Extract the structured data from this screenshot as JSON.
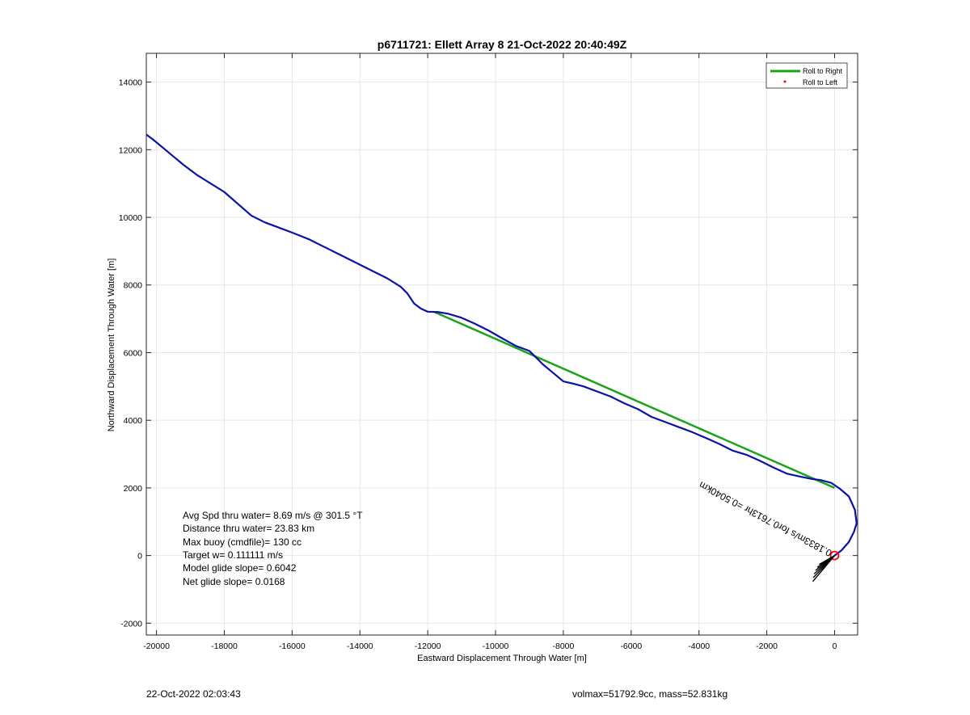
{
  "chart_data": {
    "type": "line",
    "title": "p6711721: Ellett Array 8 21-Oct-2022 20:40:49Z",
    "xlabel": "Eastward Displacement Through Water [m]",
    "ylabel": "Northward Displacement Through Water [m]",
    "xlim": [
      -20300,
      680
    ],
    "ylim": [
      -2350,
      14850
    ],
    "xticks": [
      -20000,
      -18000,
      -16000,
      -14000,
      -12000,
      -10000,
      -8000,
      -6000,
      -4000,
      -2000,
      0
    ],
    "yticks": [
      -2000,
      0,
      2000,
      4000,
      6000,
      8000,
      10000,
      12000,
      14000
    ],
    "grid": true,
    "legend_position": "top-right",
    "legend": [
      {
        "label": "Roll to Right",
        "color": "#1aa31a",
        "style": "line"
      },
      {
        "label": "Roll to Left",
        "color": "#ff0000",
        "style": "dot"
      }
    ],
    "series": [
      {
        "name": "track",
        "color": "#0a12a8",
        "x": [
          0,
          200,
          420,
          570,
          650,
          600,
          420,
          150,
          -100,
          -400,
          -700,
          -1000,
          -1400,
          -1800,
          -2200,
          -2600,
          -3000,
          -3400,
          -3800,
          -4200,
          -4600,
          -5000,
          -5400,
          -5800,
          -6200,
          -6600,
          -7000,
          -7400,
          -7700,
          -8000,
          -8300,
          -8600,
          -8800,
          -9000,
          -9400,
          -9800,
          -10200,
          -10600,
          -11000,
          -11400,
          -11700,
          -12000,
          -12200,
          -12400,
          -12600,
          -12800,
          -13200,
          -13600,
          -14000,
          -14500,
          -15000,
          -15500,
          -16000,
          -16400,
          -16800,
          -17200,
          -17600,
          -18000,
          -18400,
          -18800,
          -19200,
          -19500,
          -19800,
          -20100,
          -20300
        ],
        "y": [
          0,
          150,
          400,
          700,
          950,
          1350,
          1750,
          1980,
          2150,
          2230,
          2270,
          2330,
          2420,
          2600,
          2800,
          2980,
          3100,
          3300,
          3480,
          3650,
          3800,
          3950,
          4100,
          4330,
          4500,
          4700,
          4850,
          5000,
          5080,
          5150,
          5400,
          5650,
          5850,
          6050,
          6200,
          6420,
          6650,
          6850,
          7030,
          7150,
          7200,
          7210,
          7300,
          7450,
          7750,
          7950,
          8200,
          8400,
          8600,
          8850,
          9100,
          9350,
          9550,
          9700,
          9850,
          10050,
          10400,
          10750,
          11000,
          11250,
          11550,
          11800,
          12050,
          12300,
          12450
        ]
      },
      {
        "name": "Roll to Right",
        "color": "#1aa31a",
        "x": [
          0,
          -11800
        ],
        "y": [
          2000,
          7200
        ]
      }
    ],
    "red_circle": {
      "x": 0,
      "y": 0,
      "color": "#ff0000"
    },
    "annotations": [
      "Avg Spd thru water=  8.69 m/s @ 301.5 °T",
      "Distance thru water= 23.83 km",
      "Max buoy (cmdfile)= 130 cc",
      "Target w= 0.111111 m/s",
      "Model glide slope= 0.6042",
      "Net glide slope= 0.0168"
    ],
    "vector_label": "0.1833m/s for0.7613hr =0.5040km",
    "footer_left": "22-Oct-2022 02:03:43",
    "footer_right": "volmax=51792.9cc, mass=52.831kg"
  }
}
